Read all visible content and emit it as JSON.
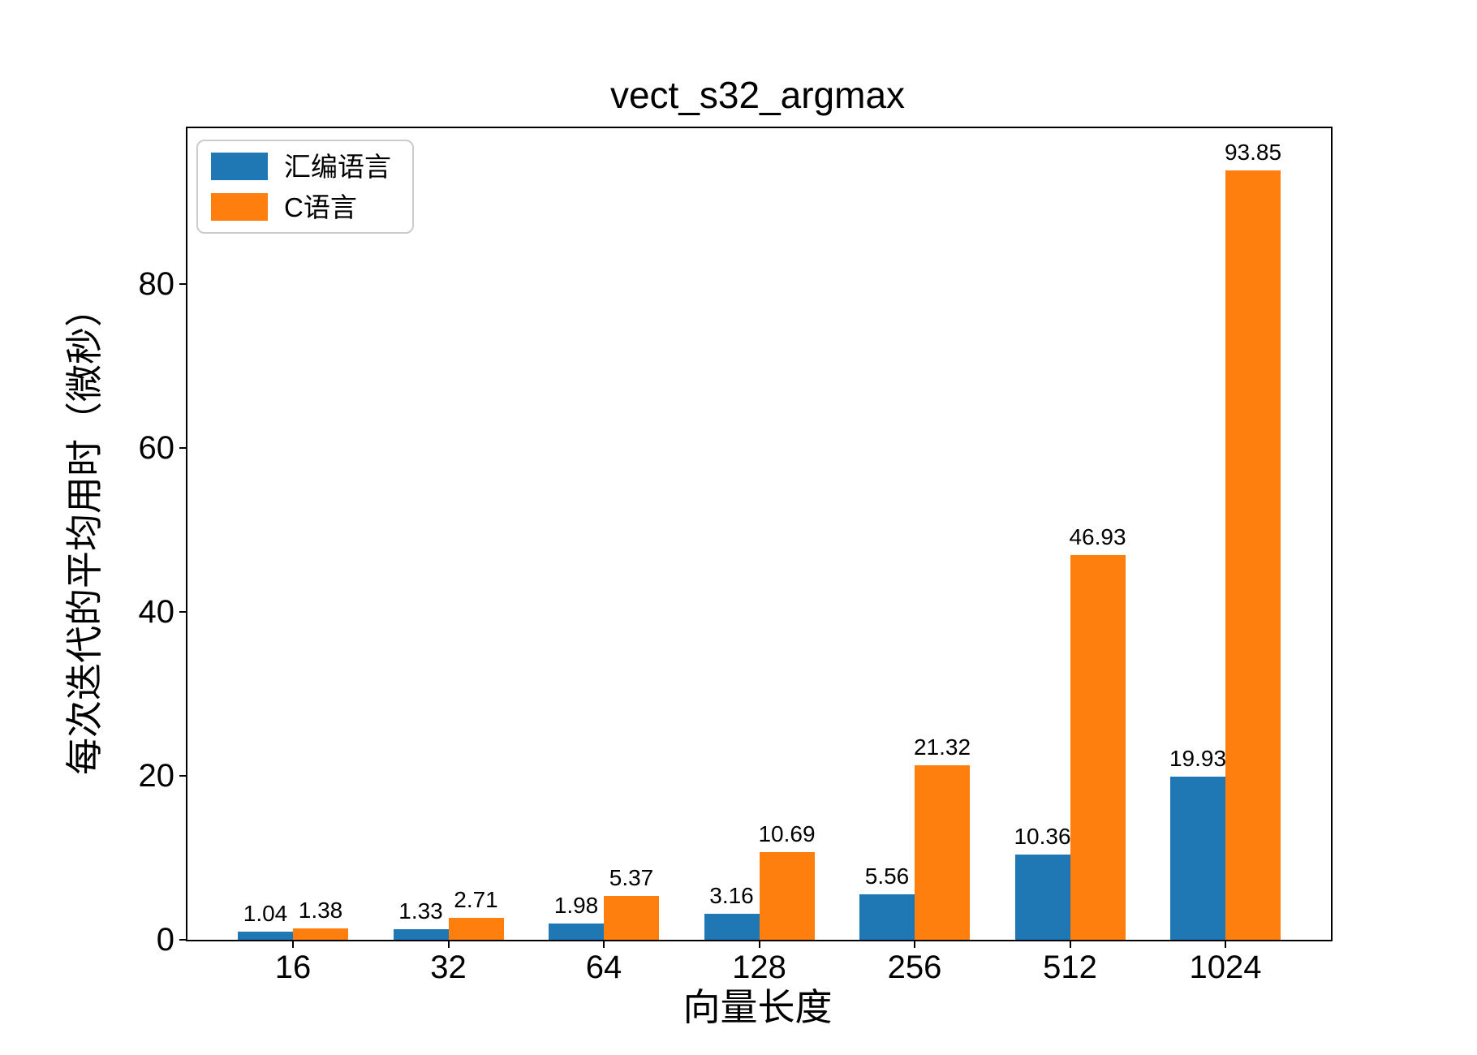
{
  "chart_data": {
    "type": "bar",
    "title": "vect_s32_argmax",
    "xlabel": "向量长度",
    "ylabel": "每次迭代的平均用时（微秒）",
    "categories": [
      "16",
      "32",
      "64",
      "128",
      "256",
      "512",
      "1024"
    ],
    "series": [
      {
        "name": "汇编语言",
        "color": "#1f77b4",
        "values": [
          1.04,
          1.33,
          1.98,
          3.16,
          5.56,
          10.36,
          19.93
        ]
      },
      {
        "name": "C语言",
        "color": "#ff7f0e",
        "values": [
          1.38,
          2.71,
          5.37,
          10.69,
          21.32,
          46.93,
          93.85
        ]
      }
    ],
    "value_labels": [
      [
        "1.04",
        "1.33",
        "1.98",
        "3.16",
        "5.56",
        "10.36",
        "19.93"
      ],
      [
        "1.38",
        "2.71",
        "5.37",
        "10.69",
        "21.32",
        "46.93",
        "93.85"
      ]
    ],
    "yticks": [
      0,
      20,
      40,
      60,
      80
    ],
    "ylim": [
      0,
      99
    ],
    "grid": false,
    "legend_position": "upper-left",
    "axis_color": "#000000",
    "background_color": "#ffffff"
  }
}
